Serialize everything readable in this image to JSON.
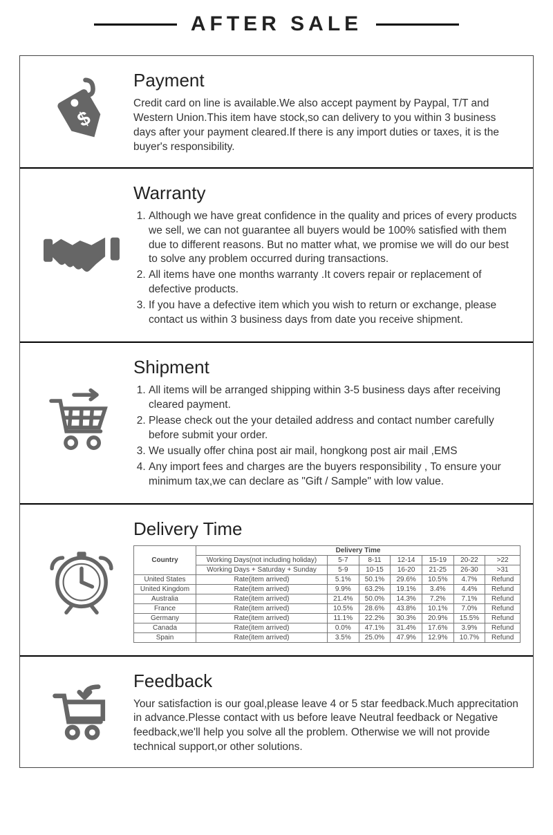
{
  "header": {
    "title": "AFTER SALE"
  },
  "payment": {
    "title": "Payment",
    "text": "Credit card on line is available.We also accept payment by Paypal, T/T and Western Union.This item have stock,so can delivery to you  within 3 business days after your payment cleared.If there is any import duties or taxes, it is the buyer's responsibility."
  },
  "warranty": {
    "title": "Warranty",
    "items": [
      "Although we have great confidence in the quality and prices of every products we sell, we can not guarantee all buyers would be 100% satisfied with them due to different reasons. But no matter what, we promise we will do our best to solve any problem occurred during transactions.",
      "All items have one months warranty .It covers repair or replacement of defective products.",
      "If you have a defective item which you wish to return or exchange, please contact us within 3 business days from date you receive shipment."
    ]
  },
  "shipment": {
    "title": "Shipment",
    "items": [
      "All items will be arranged shipping within 3-5 business days after receiving cleared payment.",
      "Please check out the your detailed address and contact number carefully before submit your order.",
      "We usually offer china post air mail, hongkong post air mail ,EMS",
      "Any import fees and charges are the buyers responsibility , To ensure your minimum tax,we can declare as \"Gift / Sample\" with low value."
    ]
  },
  "delivery": {
    "title": "Delivery Time",
    "table": {
      "country_header": "Country",
      "top_header": "Delivery Time",
      "wd1_label": "Working Days(not including holiday)",
      "wd2_label": "Working Days + Saturday + Sunday",
      "range1": [
        "5-7",
        "8-11",
        "12-14",
        "15-19",
        "20-22",
        ">22"
      ],
      "range2": [
        "5-9",
        "10-15",
        "16-20",
        "21-25",
        "26-30",
        ">31"
      ],
      "rate_label": "Rate(item arrived)",
      "refund": "Refund",
      "rows": [
        {
          "country": "United States",
          "vals": [
            "5.1%",
            "50.1%",
            "29.6%",
            "10.5%",
            "4.7%"
          ]
        },
        {
          "country": "United Kingdom",
          "vals": [
            "9.9%",
            "63.2%",
            "19.1%",
            "3.4%",
            "4.4%"
          ]
        },
        {
          "country": "Australia",
          "vals": [
            "21.4%",
            "50.0%",
            "14.3%",
            "7.2%",
            "7.1%"
          ]
        },
        {
          "country": "France",
          "vals": [
            "10.5%",
            "28.6%",
            "43.8%",
            "10.1%",
            "7.0%"
          ]
        },
        {
          "country": "Germany",
          "vals": [
            "11.1%",
            "22.2%",
            "30.3%",
            "20.9%",
            "15.5%"
          ]
        },
        {
          "country": "Canada",
          "vals": [
            "0.0%",
            "47.1%",
            "31.4%",
            "17.6%",
            "3.9%"
          ]
        },
        {
          "country": "Spain",
          "vals": [
            "3.5%",
            "25.0%",
            "47.9%",
            "12.9%",
            "10.7%"
          ]
        }
      ]
    }
  },
  "feedback": {
    "title": "Feedback",
    "text": "Your satisfaction is our goal,please leave 4 or 5 star feedback.Much apprecitation in advance.Plesse contact with us before leave Neutral feedback or Negative feedback,we'll help you solve all the problem. Otherwise we will not provide technical support,or other solutions."
  },
  "styles": {
    "text_color": "#333333",
    "border_color": "#000000",
    "icon_color": "#666666"
  }
}
